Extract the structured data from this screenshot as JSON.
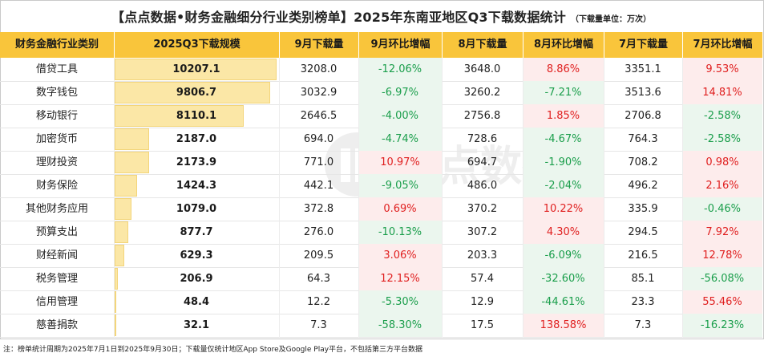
{
  "title": "【点点数据•财务金融细分行业类别榜单】2025年东南亚地区Q3下载数据统计",
  "unit": "（下载量单位：万次）",
  "footnote": "注：榜单统计周期为2025年7月1日到2025年9月30日；下载量仅统计地区App Store及Google Play平台，不包括第三方平台数据",
  "watermark": "点点数据",
  "colors": {
    "header_bg": "#f9c53b",
    "bar_fill": "#fbe7a6",
    "positive_text": "#e02020",
    "negative_text": "#1a9e4b",
    "positive_cell_bg": "#fdecec",
    "negative_cell_bg": "#ebf6ee"
  },
  "chart_data": {
    "type": "table",
    "columns": [
      "财务金融行业类别",
      "2025Q3下载规模",
      "9月下载量",
      "9月环比增幅",
      "8月下载量",
      "8月环比增幅",
      "7月下载量",
      "7月环比增幅"
    ],
    "rows": [
      {
        "category": "借贷工具",
        "q3": "10207.1",
        "q3_value": 10207.1,
        "sep": "3208.0",
        "sep_mom": "-12.06%",
        "aug": "3648.0",
        "aug_mom": "8.86%",
        "jul": "3351.1",
        "jul_mom": "9.53%"
      },
      {
        "category": "数字钱包",
        "q3": "9806.7",
        "q3_value": 9806.7,
        "sep": "3032.9",
        "sep_mom": "-6.97%",
        "aug": "3260.2",
        "aug_mom": "-7.21%",
        "jul": "3513.6",
        "jul_mom": "14.81%"
      },
      {
        "category": "移动银行",
        "q3": "8110.1",
        "q3_value": 8110.1,
        "sep": "2646.5",
        "sep_mom": "-4.00%",
        "aug": "2756.8",
        "aug_mom": "1.85%",
        "jul": "2706.8",
        "jul_mom": "-2.58%"
      },
      {
        "category": "加密货币",
        "q3": "2187.0",
        "q3_value": 2187.0,
        "sep": "694.0",
        "sep_mom": "-4.74%",
        "aug": "728.6",
        "aug_mom": "-4.67%",
        "jul": "764.3",
        "jul_mom": "-2.58%"
      },
      {
        "category": "理财投资",
        "q3": "2173.9",
        "q3_value": 2173.9,
        "sep": "771.0",
        "sep_mom": "10.97%",
        "aug": "694.7",
        "aug_mom": "-1.90%",
        "jul": "708.2",
        "jul_mom": "0.98%"
      },
      {
        "category": "财务保险",
        "q3": "1424.3",
        "q3_value": 1424.3,
        "sep": "442.1",
        "sep_mom": "-9.05%",
        "aug": "486.0",
        "aug_mom": "-2.04%",
        "jul": "496.2",
        "jul_mom": "2.16%"
      },
      {
        "category": "其他财务应用",
        "q3": "1079.0",
        "q3_value": 1079.0,
        "sep": "372.8",
        "sep_mom": "0.69%",
        "aug": "370.2",
        "aug_mom": "10.22%",
        "jul": "335.9",
        "jul_mom": "-0.46%"
      },
      {
        "category": "预算支出",
        "q3": "877.7",
        "q3_value": 877.7,
        "sep": "276.0",
        "sep_mom": "-10.13%",
        "aug": "307.2",
        "aug_mom": "4.30%",
        "jul": "294.5",
        "jul_mom": "7.92%"
      },
      {
        "category": "财经新闻",
        "q3": "629.3",
        "q3_value": 629.3,
        "sep": "209.5",
        "sep_mom": "3.06%",
        "aug": "203.3",
        "aug_mom": "-6.09%",
        "jul": "216.5",
        "jul_mom": "12.78%"
      },
      {
        "category": "税务管理",
        "q3": "206.9",
        "q3_value": 206.9,
        "sep": "64.3",
        "sep_mom": "12.15%",
        "aug": "57.4",
        "aug_mom": "-32.60%",
        "jul": "85.1",
        "jul_mom": "-56.08%"
      },
      {
        "category": "信用管理",
        "q3": "48.4",
        "q3_value": 48.4,
        "sep": "12.2",
        "sep_mom": "-5.30%",
        "aug": "12.9",
        "aug_mom": "-44.61%",
        "jul": "23.3",
        "jul_mom": "55.46%"
      },
      {
        "category": "慈善捐款",
        "q3": "32.1",
        "q3_value": 32.1,
        "sep": "7.3",
        "sep_mom": "-58.30%",
        "aug": "17.5",
        "aug_mom": "138.58%",
        "jul": "7.3",
        "jul_mom": "-16.23%"
      }
    ]
  }
}
